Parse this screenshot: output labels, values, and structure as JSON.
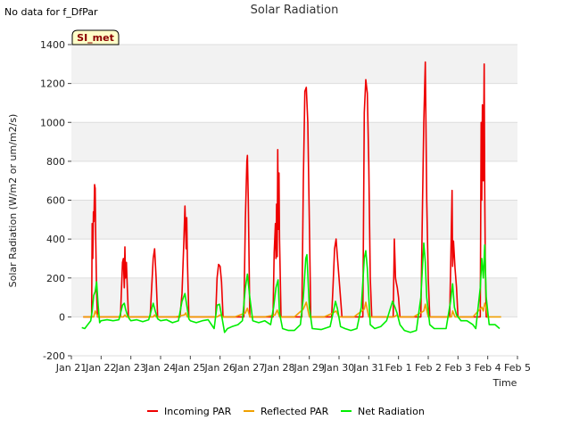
{
  "status_note": "No data for f_DfPar",
  "station_badge": "SI_met",
  "chart_data": {
    "type": "line",
    "title": "Solar Radiation",
    "xlabel": "Time",
    "ylabel": "Solar Radiation (W/m2 or um/m2/s)",
    "ylim": [
      -200,
      1400
    ],
    "xlim": [
      0,
      15
    ],
    "yticks": [
      -200,
      0,
      200,
      400,
      600,
      800,
      1000,
      1200,
      1400
    ],
    "xticks": [
      {
        "v": 0,
        "label": "Jan 21"
      },
      {
        "v": 1,
        "label": "Jan 22"
      },
      {
        "v": 2,
        "label": "Jan 23"
      },
      {
        "v": 3,
        "label": "Jan 24"
      },
      {
        "v": 4,
        "label": "Jan 25"
      },
      {
        "v": 5,
        "label": "Jan 26"
      },
      {
        "v": 6,
        "label": "Jan 27"
      },
      {
        "v": 7,
        "label": "Jan 28"
      },
      {
        "v": 8,
        "label": "Jan 29"
      },
      {
        "v": 9,
        "label": "Jan 30"
      },
      {
        "v": 10,
        "label": "Jan 31"
      },
      {
        "v": 11,
        "label": "Feb 1"
      },
      {
        "v": 12,
        "label": "Feb 2"
      },
      {
        "v": 13,
        "label": "Feb 3"
      },
      {
        "v": 14,
        "label": "Feb 4"
      },
      {
        "v": 15,
        "label": "Feb 5"
      }
    ],
    "grid": true,
    "legend": "bottom-center",
    "series": [
      {
        "name": "Incoming PAR",
        "color": "#ee0000",
        "x": [
          0.4,
          0.68,
          0.7,
          0.72,
          0.74,
          0.76,
          0.78,
          0.8,
          0.82,
          0.85,
          0.88,
          0.9,
          0.92,
          0.95,
          1.0,
          1.5,
          1.65,
          1.72,
          1.75,
          1.78,
          1.8,
          1.82,
          1.85,
          1.88,
          1.92,
          1.95,
          2.0,
          2.5,
          2.65,
          2.75,
          2.8,
          2.85,
          2.9,
          3.0,
          3.5,
          3.65,
          3.72,
          3.78,
          3.82,
          3.86,
          3.88,
          3.9,
          3.95,
          4.0,
          4.5,
          4.85,
          4.9,
          4.95,
          5.0,
          5.05,
          5.1,
          5.2,
          5.5,
          5.8,
          5.85,
          5.9,
          5.92,
          5.95,
          6.0,
          6.05,
          6.1,
          6.5,
          6.78,
          6.82,
          6.86,
          6.88,
          6.9,
          6.92,
          6.94,
          6.96,
          6.98,
          7.0,
          7.05,
          7.1,
          7.15,
          7.5,
          7.75,
          7.8,
          7.85,
          7.9,
          7.95,
          8.0,
          8.05,
          8.1,
          8.5,
          8.75,
          8.8,
          8.85,
          8.9,
          8.95,
          9.0,
          9.1,
          9.5,
          9.8,
          9.85,
          9.9,
          9.95,
          10.0,
          10.05,
          10.1,
          10.5,
          10.82,
          10.86,
          10.9,
          10.92,
          10.96,
          11.0,
          11.05,
          11.5,
          11.75,
          11.8,
          11.85,
          11.9,
          11.95,
          12.0,
          12.05,
          12.1,
          12.5,
          12.72,
          12.76,
          12.8,
          12.82,
          12.85,
          12.9,
          12.95,
          13.0,
          13.5,
          13.75,
          13.78,
          13.8,
          13.82,
          13.85,
          13.88,
          13.9,
          13.92,
          13.95,
          14.0,
          14.05
        ],
        "values": [
          0,
          0,
          480,
          300,
          540,
          490,
          680,
          660,
          400,
          120,
          0,
          0,
          0,
          0,
          0,
          0,
          0,
          280,
          300,
          150,
          360,
          200,
          280,
          150,
          0,
          0,
          0,
          0,
          0,
          300,
          350,
          200,
          0,
          0,
          0,
          0,
          120,
          380,
          570,
          350,
          510,
          300,
          0,
          0,
          0,
          0,
          200,
          270,
          260,
          180,
          0,
          0,
          0,
          0,
          500,
          800,
          830,
          600,
          0,
          0,
          0,
          0,
          0,
          330,
          480,
          300,
          580,
          310,
          860,
          450,
          740,
          400,
          0,
          0,
          0,
          0,
          0,
          700,
          1160,
          1180,
          1000,
          500,
          0,
          0,
          0,
          0,
          160,
          350,
          400,
          300,
          200,
          0,
          0,
          0,
          1050,
          1220,
          1150,
          800,
          200,
          0,
          0,
          0,
          400,
          200,
          180,
          150,
          100,
          0,
          0,
          0,
          500,
          1000,
          1310,
          600,
          200,
          0,
          0,
          0,
          0,
          300,
          650,
          260,
          390,
          250,
          150,
          0,
          0,
          0,
          1000,
          600,
          1090,
          700,
          1300,
          650,
          250,
          0,
          0,
          0
        ]
      },
      {
        "name": "Reflected PAR",
        "color": "#f0a000",
        "x": [
          0.4,
          0.75,
          0.8,
          0.85,
          0.9,
          1.5,
          1.75,
          1.8,
          1.85,
          2.5,
          2.75,
          2.8,
          2.85,
          3.5,
          3.8,
          3.85,
          3.9,
          4.5,
          4.9,
          5.0,
          5.1,
          5.5,
          5.85,
          5.92,
          6.0,
          6.5,
          6.85,
          6.92,
          7.0,
          7.5,
          7.8,
          7.9,
          8.0,
          8.5,
          8.8,
          8.9,
          9.0,
          9.5,
          9.85,
          9.9,
          10.0,
          10.5,
          10.85,
          10.95,
          11.0,
          11.5,
          11.85,
          11.9,
          12.0,
          12.5,
          12.78,
          12.82,
          12.9,
          13.5,
          13.8,
          13.85,
          13.9,
          13.95,
          14.0,
          14.45
        ],
        "values": [
          0,
          0,
          30,
          15,
          0,
          0,
          0,
          10,
          0,
          0,
          0,
          10,
          0,
          0,
          10,
          20,
          0,
          0,
          0,
          10,
          0,
          0,
          20,
          45,
          0,
          0,
          10,
          35,
          0,
          0,
          40,
          75,
          0,
          0,
          20,
          30,
          0,
          0,
          40,
          75,
          0,
          0,
          0,
          10,
          0,
          0,
          30,
          65,
          0,
          0,
          0,
          30,
          0,
          0,
          50,
          30,
          70,
          50,
          0,
          0
        ]
      },
      {
        "name": "Net Radiation",
        "color": "#00ee00",
        "x": [
          0.35,
          0.45,
          0.55,
          0.65,
          0.7,
          0.75,
          0.8,
          0.85,
          0.9,
          0.95,
          1.0,
          1.2,
          1.4,
          1.6,
          1.72,
          1.78,
          1.82,
          1.88,
          1.95,
          2.0,
          2.2,
          2.4,
          2.6,
          2.75,
          2.82,
          2.9,
          3.0,
          3.2,
          3.4,
          3.6,
          3.72,
          3.82,
          3.88,
          3.95,
          4.0,
          4.2,
          4.4,
          4.6,
          4.8,
          4.9,
          4.98,
          5.05,
          5.15,
          5.25,
          5.4,
          5.6,
          5.75,
          5.85,
          5.92,
          6.0,
          6.1,
          6.3,
          6.5,
          6.7,
          6.8,
          6.88,
          6.95,
          7.0,
          7.1,
          7.3,
          7.5,
          7.7,
          7.8,
          7.88,
          7.92,
          8.0,
          8.1,
          8.4,
          8.7,
          8.8,
          8.88,
          8.95,
          9.05,
          9.2,
          9.4,
          9.6,
          9.75,
          9.85,
          9.9,
          9.95,
          10.05,
          10.2,
          10.4,
          10.6,
          10.8,
          10.88,
          10.95,
          11.05,
          11.2,
          11.4,
          11.6,
          11.75,
          11.85,
          11.9,
          11.95,
          12.05,
          12.2,
          12.4,
          12.6,
          12.75,
          12.82,
          12.88,
          12.95,
          13.1,
          13.3,
          13.5,
          13.6,
          13.75,
          13.8,
          13.85,
          13.9,
          13.95,
          14.05,
          14.25,
          14.4
        ],
        "values": [
          -55,
          -60,
          -40,
          -20,
          30,
          110,
          130,
          180,
          60,
          -30,
          -20,
          -15,
          -20,
          -15,
          60,
          70,
          40,
          10,
          -10,
          -20,
          -15,
          -25,
          -15,
          70,
          30,
          -10,
          -20,
          -15,
          -30,
          -20,
          80,
          120,
          60,
          -10,
          -20,
          -30,
          -20,
          -15,
          -60,
          60,
          65,
          10,
          -80,
          -60,
          -50,
          -40,
          -20,
          150,
          220,
          100,
          -20,
          -30,
          -20,
          -40,
          50,
          150,
          190,
          20,
          -60,
          -70,
          -70,
          -40,
          100,
          300,
          320,
          50,
          -60,
          -65,
          -50,
          20,
          80,
          40,
          -50,
          -60,
          -70,
          -60,
          50,
          300,
          340,
          250,
          -40,
          -60,
          -50,
          -20,
          80,
          50,
          20,
          -40,
          -70,
          -80,
          -70,
          100,
          380,
          280,
          100,
          -40,
          -60,
          -60,
          -60,
          80,
          170,
          50,
          10,
          -20,
          -20,
          -40,
          -60,
          150,
          300,
          200,
          370,
          100,
          -40,
          -40,
          -60
        ]
      }
    ]
  }
}
